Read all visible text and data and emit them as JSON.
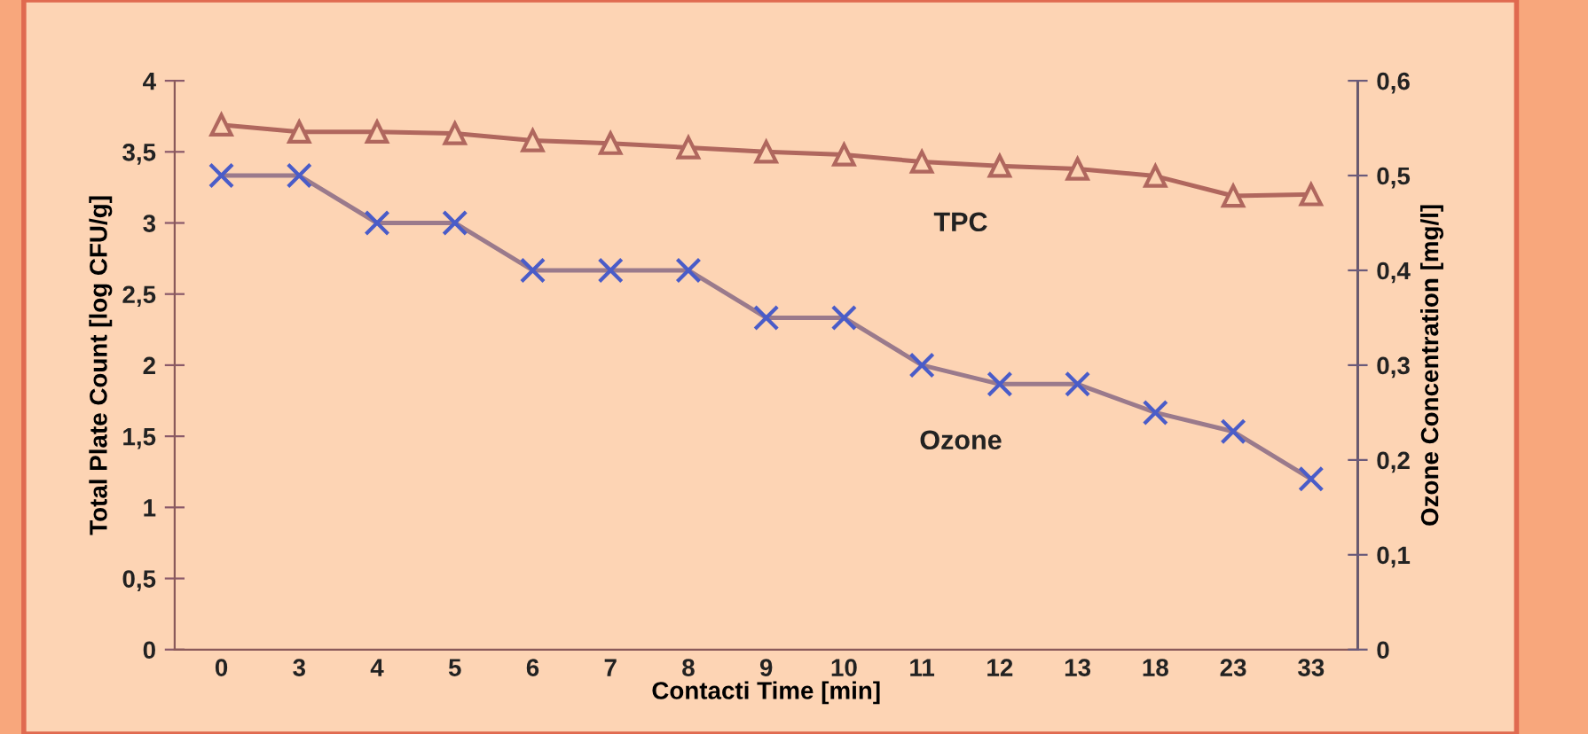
{
  "chart_data": {
    "type": "line",
    "categories": [
      "0",
      "3",
      "4",
      "5",
      "6",
      "7",
      "8",
      "9",
      "10",
      "11",
      "12",
      "13",
      "18",
      "23",
      "33"
    ],
    "xlabel": "Contacti Time [min]",
    "ylabel": "Total Plate Count [log CFU/g]",
    "y2label": "Ozone Concentration [mg/l]",
    "series": [
      {
        "name": "TPC",
        "color": "#b0675e",
        "marker": "triangle",
        "values": [
          3.69,
          3.64,
          3.64,
          3.63,
          3.58,
          3.56,
          3.53,
          3.5,
          3.48,
          3.43,
          3.4,
          3.38,
          3.33,
          3.19,
          3.2
        ]
      },
      {
        "name": "Ozone",
        "color": "#4a5cc8",
        "axis": "y2",
        "marker": "cross",
        "values": [
          0.5,
          0.5,
          0.45,
          0.45,
          0.4,
          0.4,
          0.4,
          0.35,
          0.35,
          0.3,
          0.28,
          0.28,
          0.25,
          0.23,
          0.18
        ]
      }
    ],
    "ylim": [
      0,
      4
    ],
    "yticks": [
      0,
      {
        "value": 0.5,
        "label": "0,5"
      },
      1,
      {
        "value": 1.5,
        "label": "1,5"
      },
      2,
      {
        "value": 2.5,
        "label": "2,5"
      },
      3,
      {
        "value": 3.5,
        "label": "3,5"
      },
      4
    ],
    "y2lim": [
      0,
      0.6
    ],
    "y2ticks": [
      0,
      {
        "value": 0.1,
        "label": "0,1"
      },
      {
        "value": 0.2,
        "label": "0,2"
      },
      {
        "value": 0.3,
        "label": "0,3"
      },
      {
        "value": 0.4,
        "label": "0,4"
      },
      {
        "value": 0.5,
        "label": "0,5"
      },
      {
        "value": 0.6,
        "label": "0,6"
      }
    ],
    "grid": false,
    "line_style": "solid"
  }
}
